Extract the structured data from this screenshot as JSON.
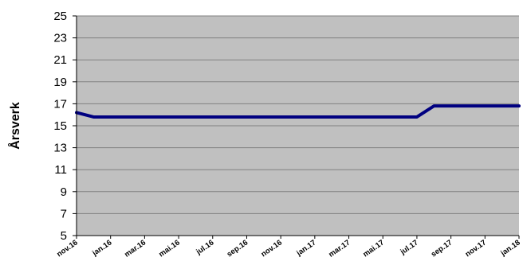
{
  "chart_data": {
    "type": "line",
    "title": "",
    "xlabel": "",
    "ylabel": "Årsverk",
    "ylim": [
      5,
      25
    ],
    "yticks": [
      5,
      7,
      9,
      11,
      13,
      15,
      17,
      19,
      21,
      23,
      25
    ],
    "grid": true,
    "legend": "none",
    "x_tick_labels": [
      "nov.16",
      "jan.16",
      "mar.16",
      "mai.16",
      "jul.16",
      "sep.16",
      "nov.16",
      "jan.17",
      "mar.17",
      "mai.17",
      "jul.17",
      "sep.17",
      "nov.17",
      "jan.18"
    ],
    "x": [
      0,
      1,
      2,
      3,
      4,
      5,
      6,
      7,
      8,
      9,
      10,
      11,
      12,
      13,
      14,
      15,
      16,
      17,
      18,
      19,
      20,
      21,
      22,
      23,
      24,
      25,
      26
    ],
    "series": [
      {
        "values": [
          16.2,
          15.8,
          15.8,
          15.8,
          15.8,
          15.8,
          15.8,
          15.8,
          15.8,
          15.8,
          15.8,
          15.8,
          15.8,
          15.8,
          15.8,
          15.8,
          15.8,
          15.8,
          15.8,
          15.8,
          15.8,
          16.8,
          16.8,
          16.8,
          16.8,
          16.8,
          16.8
        ],
        "color": "#000080"
      }
    ],
    "colors": {
      "plot_background": "#c0c0c0",
      "gridline": "#808080",
      "axis": "#000000"
    }
  }
}
